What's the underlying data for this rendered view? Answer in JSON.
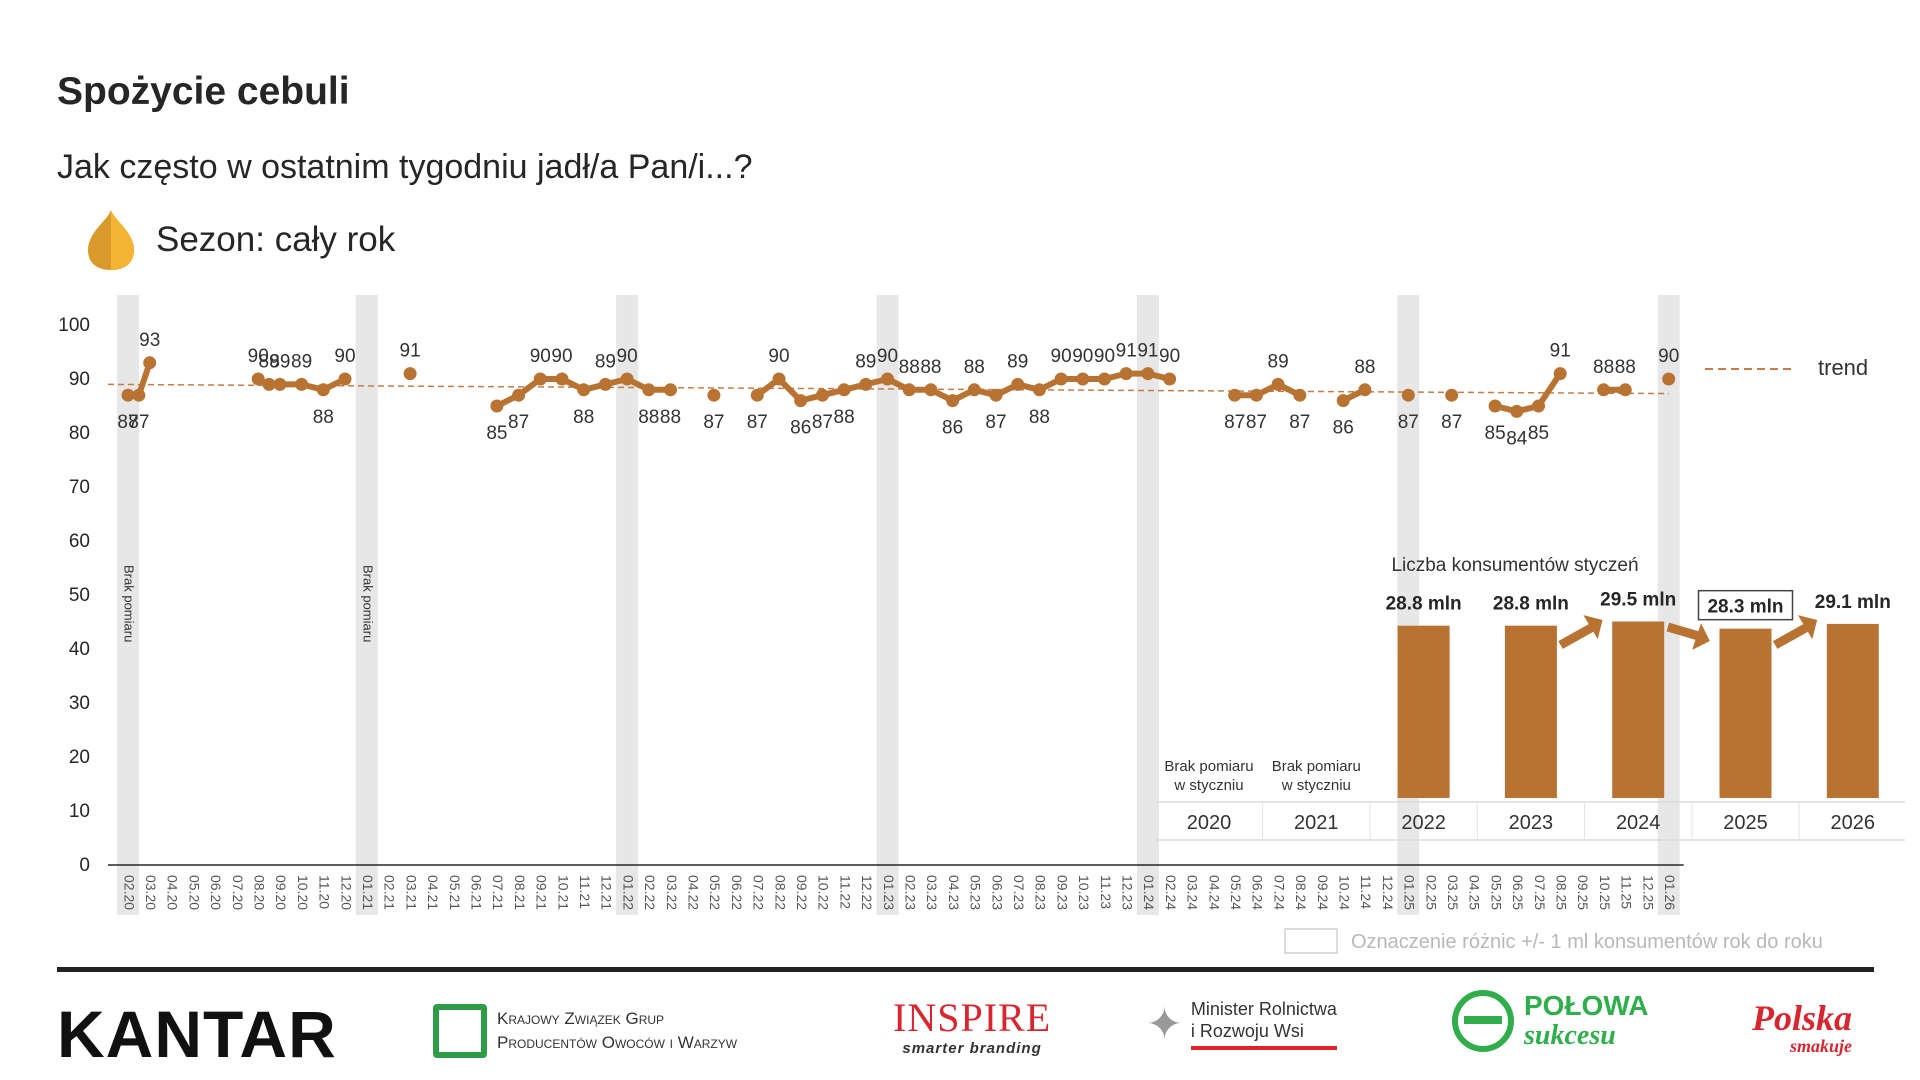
{
  "title": "Spożycie cebuli",
  "subtitle": "Jak często w ostatnim tygodniu jadł/a Pan/i...?",
  "season": {
    "icon": "onion-icon",
    "text": "Sezon: cały rok"
  },
  "colors": {
    "series": "#b87333",
    "trend": "#c87c44",
    "band": "#e7e7e7",
    "axis": "#262626"
  },
  "chart_data": [
    {
      "type": "line",
      "ylim": [
        0,
        100
      ],
      "yticks": [
        0,
        10,
        20,
        30,
        40,
        50,
        60,
        70,
        80,
        90,
        100
      ],
      "categories": [
        "02.20",
        "03.20",
        "04.20",
        "05.20",
        "06.20",
        "07.20",
        "08.20",
        "09.20",
        "10.20",
        "11.20",
        "12.20",
        "01.21",
        "02.21",
        "03.21",
        "04.21",
        "05.21",
        "06.21",
        "07.21",
        "08.21",
        "09.21",
        "10.21",
        "11.21",
        "12.21",
        "01.22",
        "02.22",
        "03.22",
        "04.22",
        "05.22",
        "06.22",
        "07.22",
        "08.22",
        "09.22",
        "10.22",
        "11.22",
        "12.22",
        "01.23",
        "02.23",
        "03.23",
        "04.23",
        "05.23",
        "06.23",
        "07.23",
        "08.23",
        "09.23",
        "10.23",
        "11.23",
        "12.23",
        "01.24",
        "02.24",
        "03.24",
        "04.24",
        "05.24",
        "06.24",
        "07.24",
        "08.24",
        "09.24",
        "10.24",
        "11.24",
        "12.24",
        "01.25",
        "02.25",
        "03.25",
        "04.25",
        "05.25",
        "06.25",
        "07.25",
        "08.25",
        "09.25",
        "10.25",
        "11.25",
        "12.25",
        "01.26"
      ],
      "points": [
        {
          "x": "02.20",
          "y": 87,
          "label": "87",
          "pos": "below"
        },
        {
          "x": "02.20",
          "y": 87,
          "label": "87",
          "pos": "below",
          "half": 1
        },
        {
          "x": "03.20",
          "y": 93,
          "label": "93",
          "pos": "above"
        },
        {
          "x": "08.20",
          "y": 90,
          "label": "90",
          "pos": "above"
        },
        {
          "x": "08.20",
          "y": 89,
          "label": "89",
          "pos": "above",
          "half": 1
        },
        {
          "x": "09.20",
          "y": 89,
          "label": "89",
          "pos": "above"
        },
        {
          "x": "10.20",
          "y": 89,
          "label": "89",
          "pos": "above"
        },
        {
          "x": "11.20",
          "y": 88,
          "label": "88",
          "pos": "below"
        },
        {
          "x": "12.20",
          "y": 90,
          "label": "90",
          "pos": "above"
        },
        {
          "x": "03.21",
          "y": 91,
          "label": "91",
          "pos": "above"
        },
        {
          "x": "07.21",
          "y": 85,
          "label": "85",
          "pos": "below"
        },
        {
          "x": "08.21",
          "y": 87,
          "label": "87",
          "pos": "below"
        },
        {
          "x": "09.21",
          "y": 90,
          "label": "90",
          "pos": "above"
        },
        {
          "x": "10.21",
          "y": 90,
          "label": "90",
          "pos": "above"
        },
        {
          "x": "11.21",
          "y": 88,
          "label": "88",
          "pos": "below"
        },
        {
          "x": "12.21",
          "y": 89,
          "label": "89",
          "pos": "above"
        },
        {
          "x": "01.22",
          "y": 90,
          "label": "90",
          "pos": "above"
        },
        {
          "x": "02.22",
          "y": 88,
          "label": "88",
          "pos": "below"
        },
        {
          "x": "03.22",
          "y": 88,
          "label": "88",
          "pos": "below"
        },
        {
          "x": "05.22",
          "y": 87,
          "label": "87",
          "pos": "below"
        },
        {
          "x": "07.22",
          "y": 87,
          "label": "87",
          "pos": "below"
        },
        {
          "x": "08.22",
          "y": 90,
          "label": "90",
          "pos": "above"
        },
        {
          "x": "09.22",
          "y": 86,
          "label": "86",
          "pos": "below"
        },
        {
          "x": "10.22",
          "y": 87,
          "label": "87",
          "pos": "below"
        },
        {
          "x": "11.22",
          "y": 88,
          "label": "88",
          "pos": "below"
        },
        {
          "x": "12.22",
          "y": 89,
          "label": "89",
          "pos": "above"
        },
        {
          "x": "01.23",
          "y": 90,
          "label": "90",
          "pos": "above"
        },
        {
          "x": "02.23",
          "y": 88,
          "label": "88",
          "pos": "above"
        },
        {
          "x": "03.23",
          "y": 88,
          "label": "88",
          "pos": "above"
        },
        {
          "x": "04.23",
          "y": 86,
          "label": "86",
          "pos": "below"
        },
        {
          "x": "05.23",
          "y": 88,
          "label": "88",
          "pos": "above"
        },
        {
          "x": "06.23",
          "y": 87,
          "label": "87",
          "pos": "below"
        },
        {
          "x": "07.23",
          "y": 89,
          "label": "89",
          "pos": "above"
        },
        {
          "x": "08.23",
          "y": 88,
          "label": "88",
          "pos": "below"
        },
        {
          "x": "09.23",
          "y": 90,
          "label": "90",
          "pos": "above"
        },
        {
          "x": "10.23",
          "y": 90,
          "label": "90",
          "pos": "above"
        },
        {
          "x": "11.23",
          "y": 90,
          "label": "90",
          "pos": "above"
        },
        {
          "x": "12.23",
          "y": 91,
          "label": "91",
          "pos": "above"
        },
        {
          "x": "01.24",
          "y": 91,
          "label": "91",
          "pos": "above"
        },
        {
          "x": "02.24",
          "y": 90,
          "label": "90",
          "pos": "above"
        },
        {
          "x": "05.24",
          "y": 87,
          "label": "87",
          "pos": "below"
        },
        {
          "x": "06.24",
          "y": 87,
          "label": "87",
          "pos": "below"
        },
        {
          "x": "07.24",
          "y": 89,
          "label": "89",
          "pos": "above"
        },
        {
          "x": "08.24",
          "y": 87,
          "label": "87",
          "pos": "below"
        },
        {
          "x": "10.24",
          "y": 86,
          "label": "86",
          "pos": "below"
        },
        {
          "x": "11.24",
          "y": 88,
          "label": "88",
          "pos": "above"
        },
        {
          "x": "01.25",
          "y": 87,
          "label": "87",
          "pos": "below"
        },
        {
          "x": "03.25",
          "y": 87,
          "label": "87",
          "pos": "below"
        },
        {
          "x": "05.25",
          "y": 85,
          "label": "85",
          "pos": "below"
        },
        {
          "x": "06.25",
          "y": 84,
          "label": "84",
          "pos": "below"
        },
        {
          "x": "07.25",
          "y": 85,
          "label": "85",
          "pos": "below"
        },
        {
          "x": "08.25",
          "y": 91,
          "label": "91",
          "pos": "above"
        },
        {
          "x": "10.25",
          "y": 88,
          "label": "88",
          "pos": "above"
        },
        {
          "x": "11.25",
          "y": 88,
          "label": "88",
          "pos": "above"
        },
        {
          "x": "01.26",
          "y": 90,
          "label": "90",
          "pos": "above"
        }
      ],
      "trend": {
        "from": 89,
        "to": 87.3
      },
      "legend": {
        "trend": "trend"
      },
      "bands": [
        "02.20",
        "01.21",
        "01.22",
        "01.23",
        "01.24",
        "01.25",
        "01.26"
      ],
      "band_notes": [
        {
          "x": "02.20",
          "text": "Brak pomiaru"
        },
        {
          "x": "01.21",
          "text": "Brak pomiaru"
        }
      ]
    },
    {
      "type": "bar",
      "title": "Liczba konsumentów styczeń",
      "categories": [
        "2020",
        "2021",
        "2022",
        "2023",
        "2024",
        "2025",
        "2026"
      ],
      "values": [
        null,
        null,
        28.8,
        28.8,
        29.5,
        28.3,
        29.1
      ],
      "value_labels": [
        "",
        "",
        "28.8 mln",
        "28.8 mln",
        "29.5 mln",
        "28.3 mln",
        "29.1 mln"
      ],
      "no_measure_label": [
        "Brak pomiaru",
        "w styczniu"
      ],
      "highlighted": [
        "2025"
      ],
      "arrows_up_before": [
        "2024",
        "2026"
      ],
      "arrows_down_before": [
        "2025"
      ],
      "ylim": [
        0,
        45
      ]
    }
  ],
  "note": "Oznaczenie różnic +/- 1 ml konsumentów rok do roku",
  "logos": {
    "kantar": "KANTAR",
    "kzg": [
      "Krajowy Związek Grup",
      "Producentów Owoców i Warzyw"
    ],
    "inspire": [
      "INSPIRE",
      "smarter branding"
    ],
    "minister": [
      "Minister Rolnictwa",
      "i Rozwoju Wsi"
    ],
    "polowa": [
      "POŁOWA",
      "sukcesu"
    ],
    "polska": [
      "Polska",
      "smakuje"
    ]
  }
}
